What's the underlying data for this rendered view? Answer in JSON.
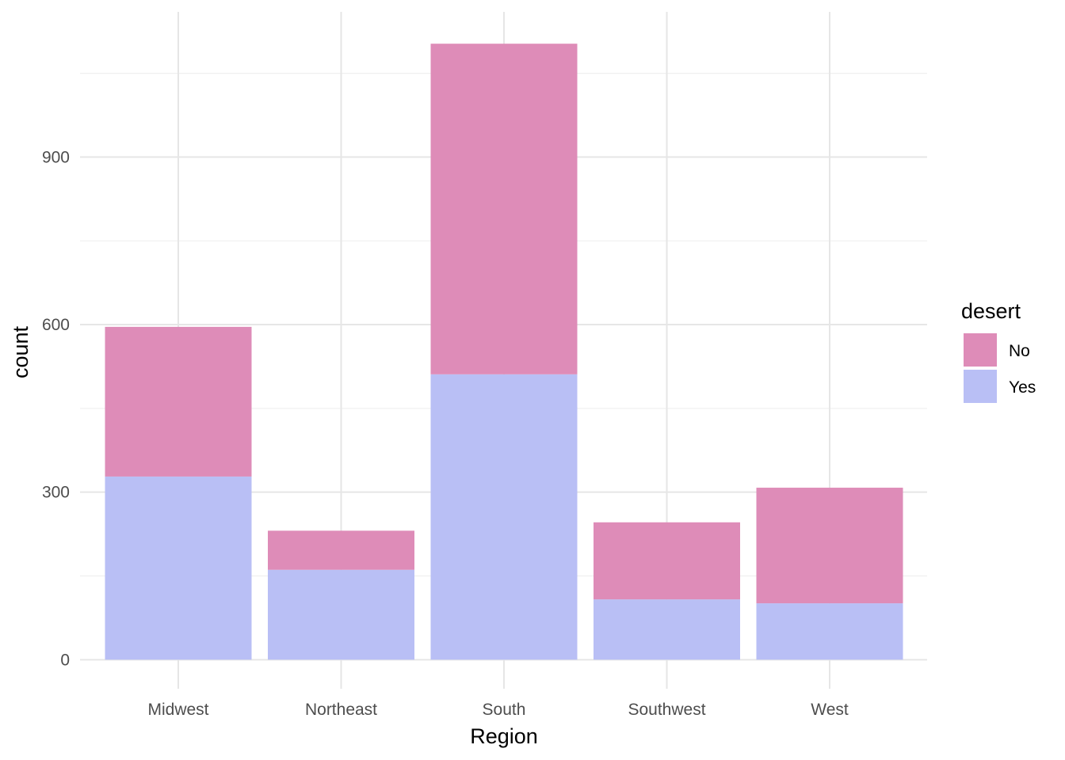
{
  "chart_data": {
    "type": "bar",
    "stacked": true,
    "categories": [
      "Midwest",
      "Northeast",
      "South",
      "Southwest",
      "West"
    ],
    "series": [
      {
        "name": "Yes",
        "values": [
          328,
          161,
          511,
          108,
          101
        ],
        "color": "#b9bff5"
      },
      {
        "name": "No",
        "values": [
          268,
          70,
          592,
          138,
          207
        ],
        "color": "#de8cb8"
      }
    ],
    "xlabel": "Region",
    "ylabel": "count",
    "ylim": [
      -52,
      1160
    ],
    "yticks": [
      0,
      300,
      600,
      900
    ],
    "ytick_labels": [
      "0",
      "300",
      "600",
      "900"
    ],
    "yminor": [
      150,
      450,
      750,
      1050
    ],
    "grid": true,
    "legend": {
      "title": "desert",
      "placement": "right",
      "entries": [
        "No",
        "Yes"
      ]
    }
  }
}
